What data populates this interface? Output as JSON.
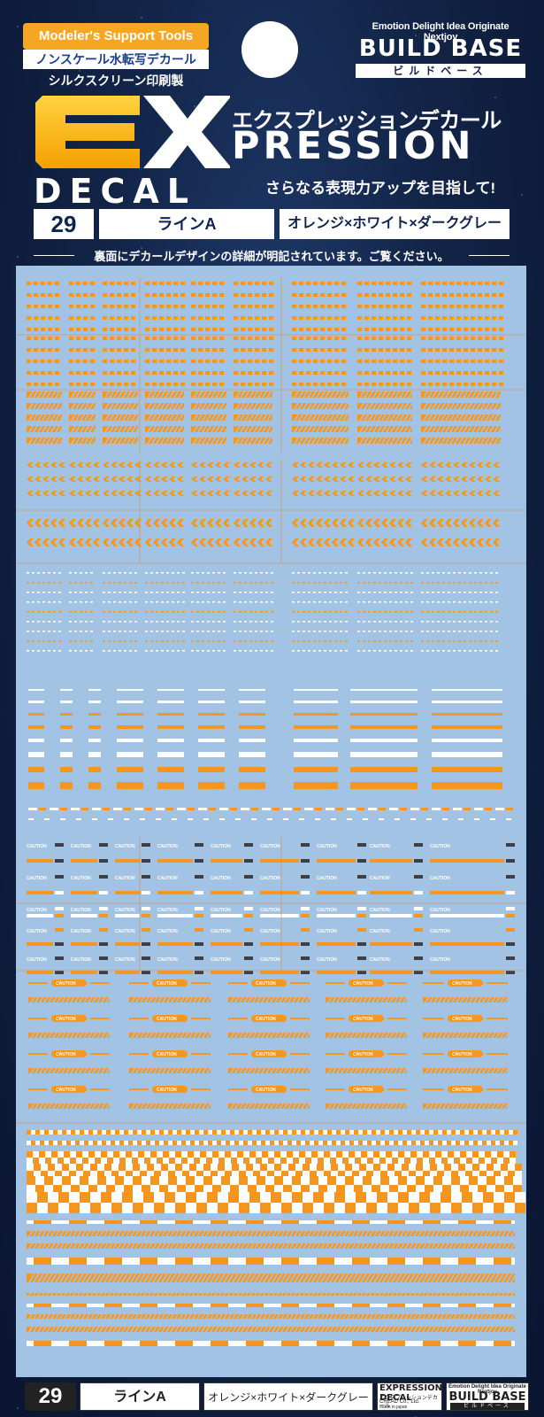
{
  "header": {
    "support_badge": "Modeler's Support Tools",
    "support_sub": "ノンスケール水転写デカール",
    "silk": "シルクスクリーン印刷製",
    "bb_tagline": "Emotion Delight Idea Originate Nextjoy",
    "bb_title": "BUILD BASE",
    "bb_kana": "ビルドベース"
  },
  "logo": {
    "kana": "エクスプレッションデカール",
    "press_word": "PRESSION",
    "decal_word": "DECAL",
    "slogan": "さらなる表現力アップを目指して!"
  },
  "product": {
    "number": "29",
    "name": "ラインA",
    "colors": "オレンジ×ホワイト×ダークグレー",
    "note": "裏面にデカールデザインの詳細が明記されています。ご覧ください。"
  },
  "sheet": {
    "caution_text": "CAUTION"
  },
  "footer": {
    "number": "29",
    "name": "ラインA",
    "colors": "オレンジ×ホワイト×ダークグレー",
    "logo_l1": "EXPRESSION DECAL",
    "logo_l2": "エクスプレッションデカール",
    "logo_l3": "CREAD Co., Ltd.",
    "logo_l4": "made in japan",
    "bb_tagline": "Emotion Delight Idea Originate Nextjoy",
    "bb_title": "BUILD BASE",
    "bb_kana": "ビルドベース"
  },
  "colors": {
    "orange": "#f5961e",
    "white": "#ffffff",
    "dark": "#3a3f4a",
    "sheet": "#a2c3e3",
    "navy": "#0f2550"
  }
}
